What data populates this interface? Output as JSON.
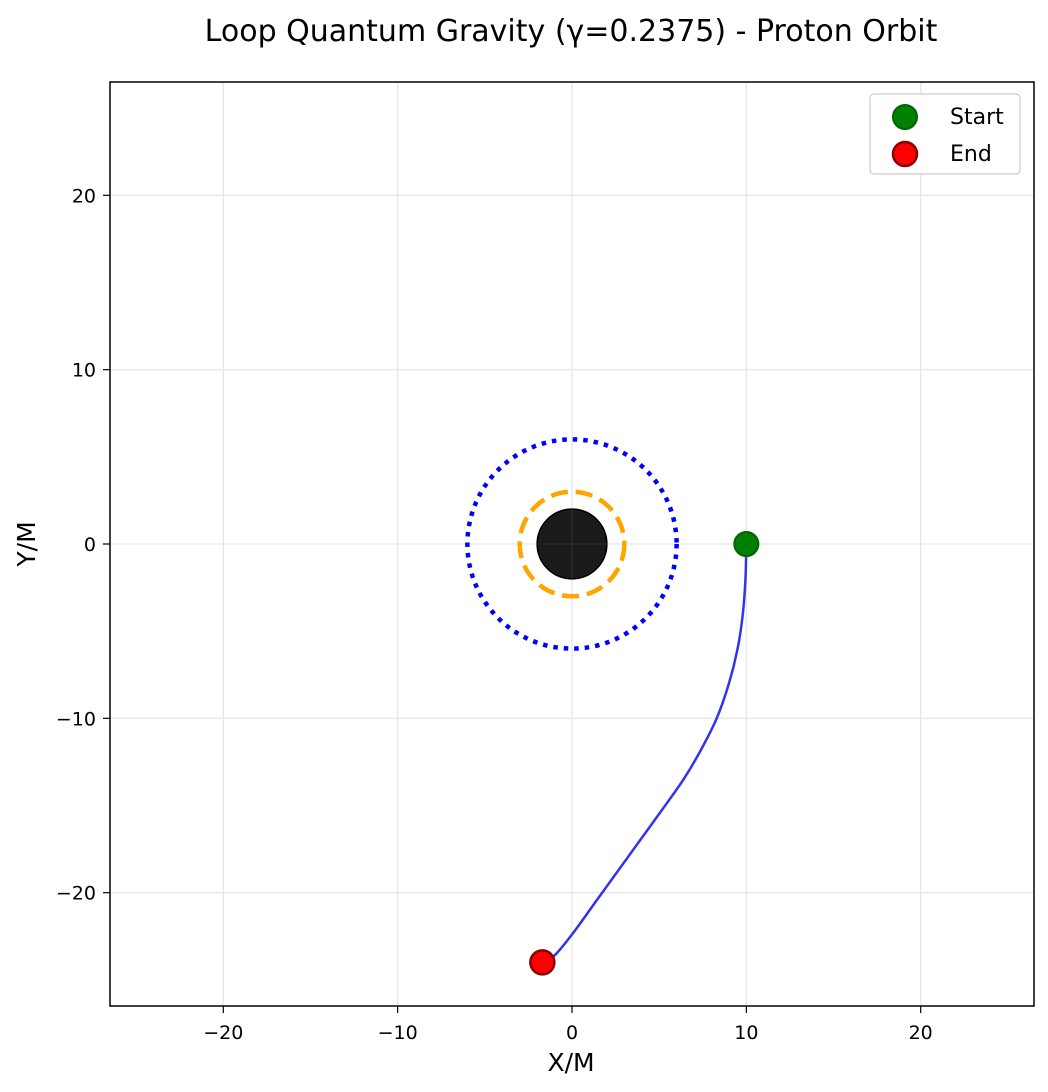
{
  "chart_data": {
    "type": "line",
    "title": "Loop Quantum Gravity (γ=0.2375) - Proton Orbit",
    "xlabel": "X/M",
    "ylabel": "Y/M",
    "xlim": [
      -26.5,
      26.5
    ],
    "ylim": [
      -26.5,
      26.5
    ],
    "xticks": [
      -20,
      -10,
      0,
      10,
      20
    ],
    "yticks": [
      -20,
      -10,
      0,
      10,
      20
    ],
    "xtick_labels": [
      "−20",
      "−10",
      "0",
      "10",
      "20"
    ],
    "ytick_labels": [
      "−20",
      "−10",
      "0",
      "10",
      "20"
    ],
    "grid": true,
    "legend_position": "top-right",
    "legend": [
      {
        "label": "Start",
        "color": "#008000"
      },
      {
        "label": "End",
        "color": "#ff0000"
      }
    ],
    "black_hole": {
      "center": [
        0,
        0
      ],
      "radius": 2.0,
      "color": "#1a1a1a"
    },
    "orange_circle": {
      "center": [
        0,
        0
      ],
      "radius": 3.0,
      "color": "#ffa500",
      "style": "dashed"
    },
    "blue_circle": {
      "center": [
        0,
        0
      ],
      "radius": 6.0,
      "color": "#0000ff",
      "style": "dotted"
    },
    "trajectory": {
      "color": "#3333ee",
      "x": [
        10.0,
        9.95,
        9.8,
        9.5,
        9.0,
        8.3,
        7.4,
        6.4,
        5.2,
        3.9,
        2.6,
        1.3,
        0.0,
        -1.0,
        -1.7
      ],
      "y": [
        0.0,
        -2.0,
        -4.0,
        -6.0,
        -8.0,
        -10.0,
        -11.8,
        -13.5,
        -15.2,
        -17.0,
        -18.8,
        -20.6,
        -22.4,
        -23.6,
        -24.0
      ]
    },
    "start": {
      "x": 10.0,
      "y": 0.0
    },
    "end": {
      "x": -1.7,
      "y": -24.0
    }
  }
}
